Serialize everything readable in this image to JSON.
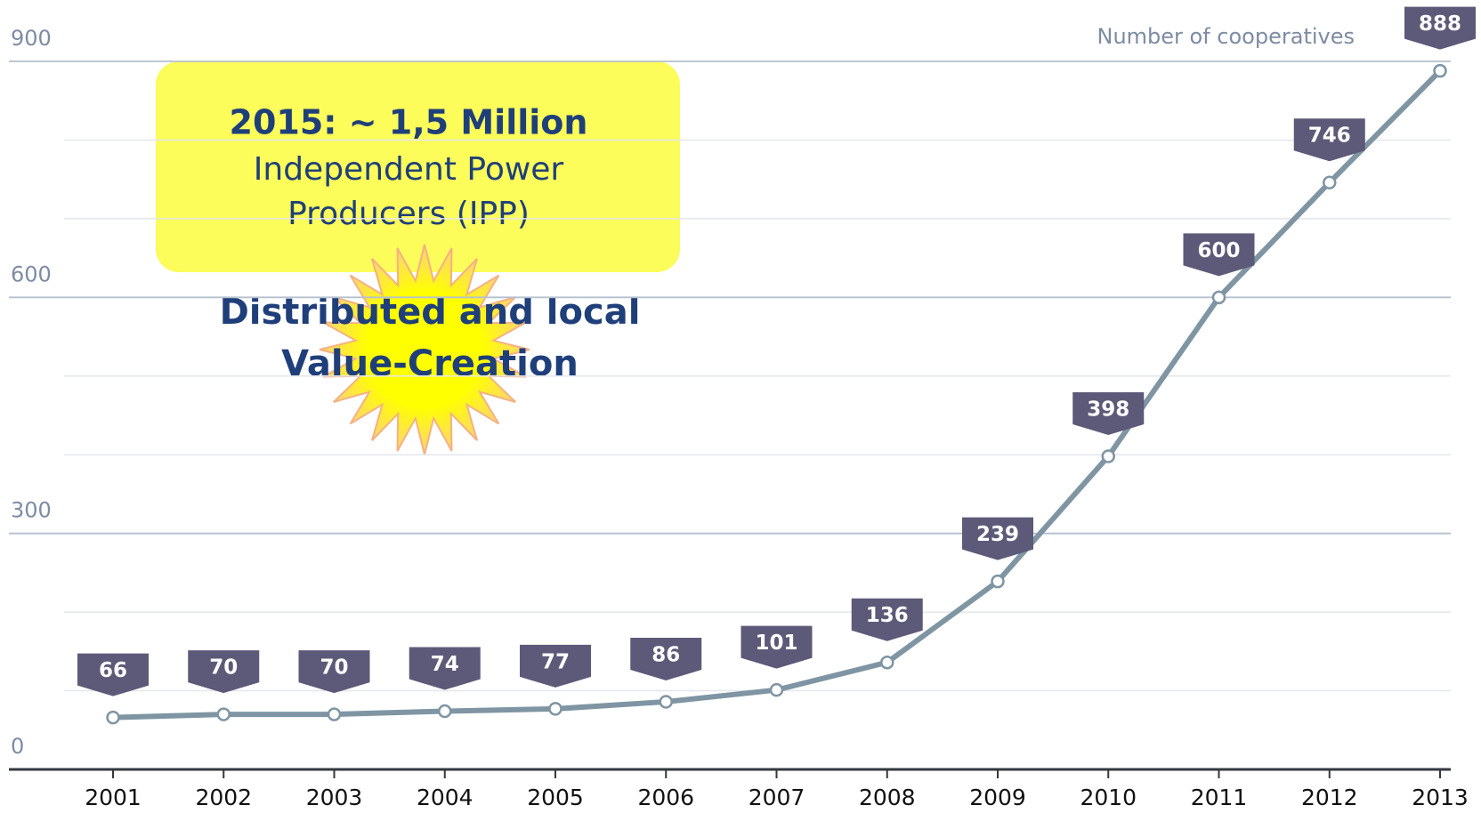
{
  "chart_data": {
    "type": "line",
    "y_axis_label": "Number of cooperatives",
    "categories": [
      "2001",
      "2002",
      "2003",
      "2004",
      "2005",
      "2006",
      "2007",
      "2008",
      "2009",
      "2010",
      "2011",
      "2012",
      "2013"
    ],
    "series": [
      {
        "name": "Number of cooperatives",
        "color": "#7f95a3",
        "values": [
          66,
          70,
          70,
          74,
          77,
          86,
          101,
          136,
          239,
          398,
          600,
          746,
          888
        ]
      }
    ],
    "ylim": [
      0,
      900
    ],
    "yticks": [
      0,
      300,
      600,
      900
    ],
    "minor_yticks": [
      100,
      200,
      400,
      500,
      700,
      800
    ],
    "grid": true,
    "label_color": "#5c5a78",
    "annotations": {
      "callout_title": "2015: ~ 1,5 Million",
      "callout_line1": "Independent Power",
      "callout_line2": "Producers (IPP)",
      "burst_line1": "Distributed and local",
      "burst_line2": "Value-Creation"
    }
  }
}
